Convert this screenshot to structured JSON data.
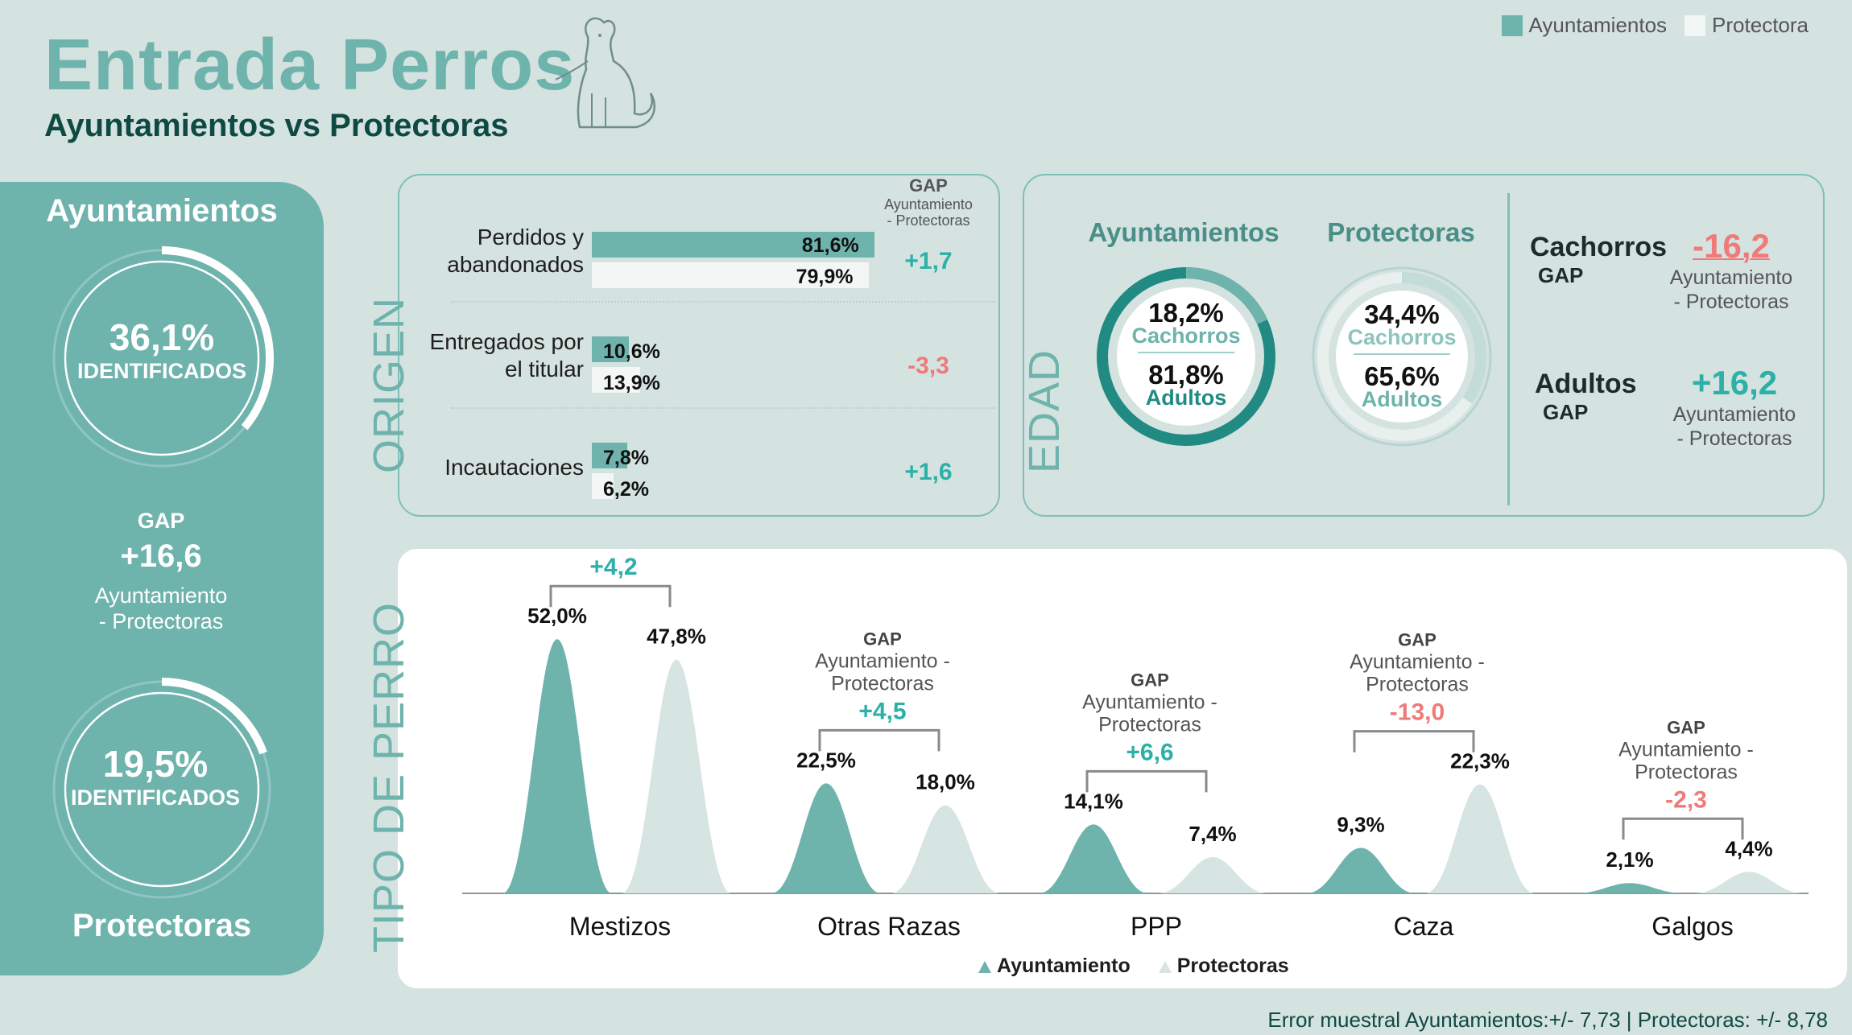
{
  "header": {
    "title": "Entrada Perros",
    "subtitle": "Ayuntamientos vs Protectoras"
  },
  "legend": {
    "items": [
      {
        "label": "Ayuntamientos",
        "color": "#6fb3ad"
      },
      {
        "label": "Protectora",
        "color": "#f2f6f5"
      }
    ]
  },
  "colors": {
    "ayuntamiento": "#6fb3ad",
    "protectora": "#d6e5e2",
    "gap_positive": "#2cb0a8",
    "gap_negative": "#ef7a7a",
    "dark_teal": "#0e4a43"
  },
  "identified": {
    "ayuntamientos": {
      "title": "Ayuntamientos",
      "value": "36,1%",
      "fraction": 0.361,
      "label": "IDENTIFICADOS"
    },
    "gap": {
      "label": "GAP",
      "value": "+16,6",
      "sub1": "Ayuntamiento",
      "sub2": "- Protectoras"
    },
    "protectoras": {
      "title": "Protectoras",
      "value": "19,5%",
      "fraction": 0.195,
      "label": "IDENTIFICADOS"
    }
  },
  "origen": {
    "section_label": "ORIGEN",
    "gap_header": {
      "title": "GAP",
      "sub1": "Ayuntamiento",
      "sub2": "- Protectoras"
    },
    "rows": [
      {
        "label1": "Perdidos y",
        "label2": "abandonados",
        "ayto": 81.6,
        "ayto_label": "81,6%",
        "prot": 79.9,
        "prot_label": "79,9%",
        "gap": "+1,7",
        "gap_sign": "pos"
      },
      {
        "label1": "Entregados por",
        "label2": "el titular",
        "ayto": 10.6,
        "ayto_label": "10,6%",
        "prot": 13.9,
        "prot_label": "13,9%",
        "gap": "-3,3",
        "gap_sign": "neg"
      },
      {
        "label1": "",
        "label2": "Incautaciones",
        "ayto": 7.8,
        "ayto_label": "7,8%",
        "prot": 6.2,
        "prot_label": "6,2%",
        "gap": "+1,6",
        "gap_sign": "pos"
      }
    ]
  },
  "edad": {
    "section_label": "EDAD",
    "ayuntamientos": {
      "title": "Ayuntamientos",
      "cachorros": "18,2%",
      "cachorros_fraction": 0.182,
      "adultos": "81,8%",
      "cachorros_label": "Cachorros",
      "adultos_label": "Adultos"
    },
    "protectoras": {
      "title": "Protectoras",
      "cachorros": "34,4%",
      "cachorros_fraction": 0.344,
      "adultos": "65,6%",
      "cachorros_label": "Cachorros",
      "adultos_label": "Adultos"
    },
    "gaps": [
      {
        "name": "Cachorros",
        "gap_label": "GAP",
        "value": "-16,2",
        "sign": "neg",
        "sub1": "Ayuntamiento",
        "sub2": "- Protectoras"
      },
      {
        "name": "Adultos",
        "gap_label": "GAP",
        "value": "+16,2",
        "sign": "pos",
        "sub1": "Ayuntamiento",
        "sub2": "- Protectoras"
      }
    ]
  },
  "chart_data": {
    "type": "area",
    "section_label": "TIPO DE PERRO",
    "categories": [
      "Mestizos",
      "Otras Razas",
      "PPP",
      "Caza",
      "Galgos"
    ],
    "series": [
      {
        "name": "Ayuntamiento",
        "values": [
          52.0,
          22.5,
          14.1,
          9.3,
          2.1
        ],
        "labels": [
          "52,0%",
          "22,5%",
          "14,1%",
          "9,3%",
          "2,1%"
        ]
      },
      {
        "name": "Protectoras",
        "values": [
          47.8,
          18.0,
          7.4,
          22.3,
          4.4
        ],
        "labels": [
          "47,8%",
          "18,0%",
          "7,4%",
          "22,3%",
          "4,4%"
        ]
      }
    ],
    "gaps": [
      {
        "value": "+4,2",
        "sign": "pos"
      },
      {
        "value": "+4,5",
        "sign": "pos"
      },
      {
        "value": "+6,6",
        "sign": "pos"
      },
      {
        "value": "-13,0",
        "sign": "neg"
      },
      {
        "value": "-2,3",
        "sign": "neg"
      }
    ],
    "gap_title": "GAP",
    "gap_sub1": "Ayuntamiento -",
    "gap_sub2": "Protectoras",
    "legend": [
      {
        "label": "Ayuntamiento",
        "color": "#6fb3ad"
      },
      {
        "label": "Protectoras",
        "color": "#d6e5e2"
      }
    ],
    "ylim": [
      0,
      55
    ]
  },
  "footer": {
    "text": "Error muestral Ayuntamientos:+/- 7,73 | Protectoras: +/- 8,78"
  }
}
